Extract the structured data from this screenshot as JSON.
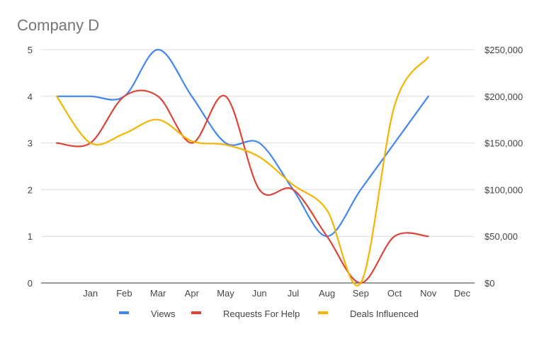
{
  "chart_data": {
    "type": "line",
    "title": "Company D",
    "xlabel": "",
    "ylabel": "",
    "categories": [
      "Jan",
      "Feb",
      "Mar",
      "Apr",
      "May",
      "Jun",
      "Jul",
      "Aug",
      "Sep",
      "Oct",
      "Nov",
      "Dec"
    ],
    "y_left": {
      "min": 0,
      "max": 5,
      "ticks": [
        "0",
        "1",
        "2",
        "3",
        "4",
        "5"
      ]
    },
    "y_right": {
      "min": 0,
      "max": 250000,
      "ticks": [
        "$0",
        "$50,000",
        "$100,000",
        "$150,000",
        "$200,000",
        "$250,000"
      ]
    },
    "grid": true,
    "legend_position": "bottom",
    "smooth": true,
    "series": [
      {
        "name": "Views",
        "axis": "left",
        "color": "#4285f4",
        "points": [
          [
            0,
            4
          ],
          [
            1,
            4
          ],
          [
            2,
            4
          ],
          [
            3,
            5
          ],
          [
            4,
            4
          ],
          [
            5,
            3
          ],
          [
            6,
            3
          ],
          [
            7,
            2
          ],
          [
            8,
            1
          ],
          [
            9,
            2
          ],
          [
            10,
            3
          ],
          [
            11,
            4
          ]
        ]
      },
      {
        "name": "Requests For Help",
        "axis": "left",
        "color": "#db4437",
        "points": [
          [
            0,
            3
          ],
          [
            1,
            3
          ],
          [
            2,
            4
          ],
          [
            3,
            4
          ],
          [
            4,
            3
          ],
          [
            5,
            4
          ],
          [
            6,
            2
          ],
          [
            7,
            2
          ],
          [
            8,
            1
          ],
          [
            9,
            0
          ],
          [
            10,
            1
          ],
          [
            11,
            1
          ]
        ]
      },
      {
        "name": "Deals Influenced",
        "axis": "right",
        "color": "#f4b400",
        "points": [
          [
            0,
            200000
          ],
          [
            1,
            150000
          ],
          [
            2,
            160000
          ],
          [
            3,
            175000
          ],
          [
            4,
            152000
          ],
          [
            5,
            148000
          ],
          [
            6,
            135000
          ],
          [
            7,
            105000
          ],
          [
            8,
            78000
          ],
          [
            9,
            0
          ],
          [
            10,
            190000
          ],
          [
            11,
            242000
          ]
        ]
      }
    ]
  }
}
